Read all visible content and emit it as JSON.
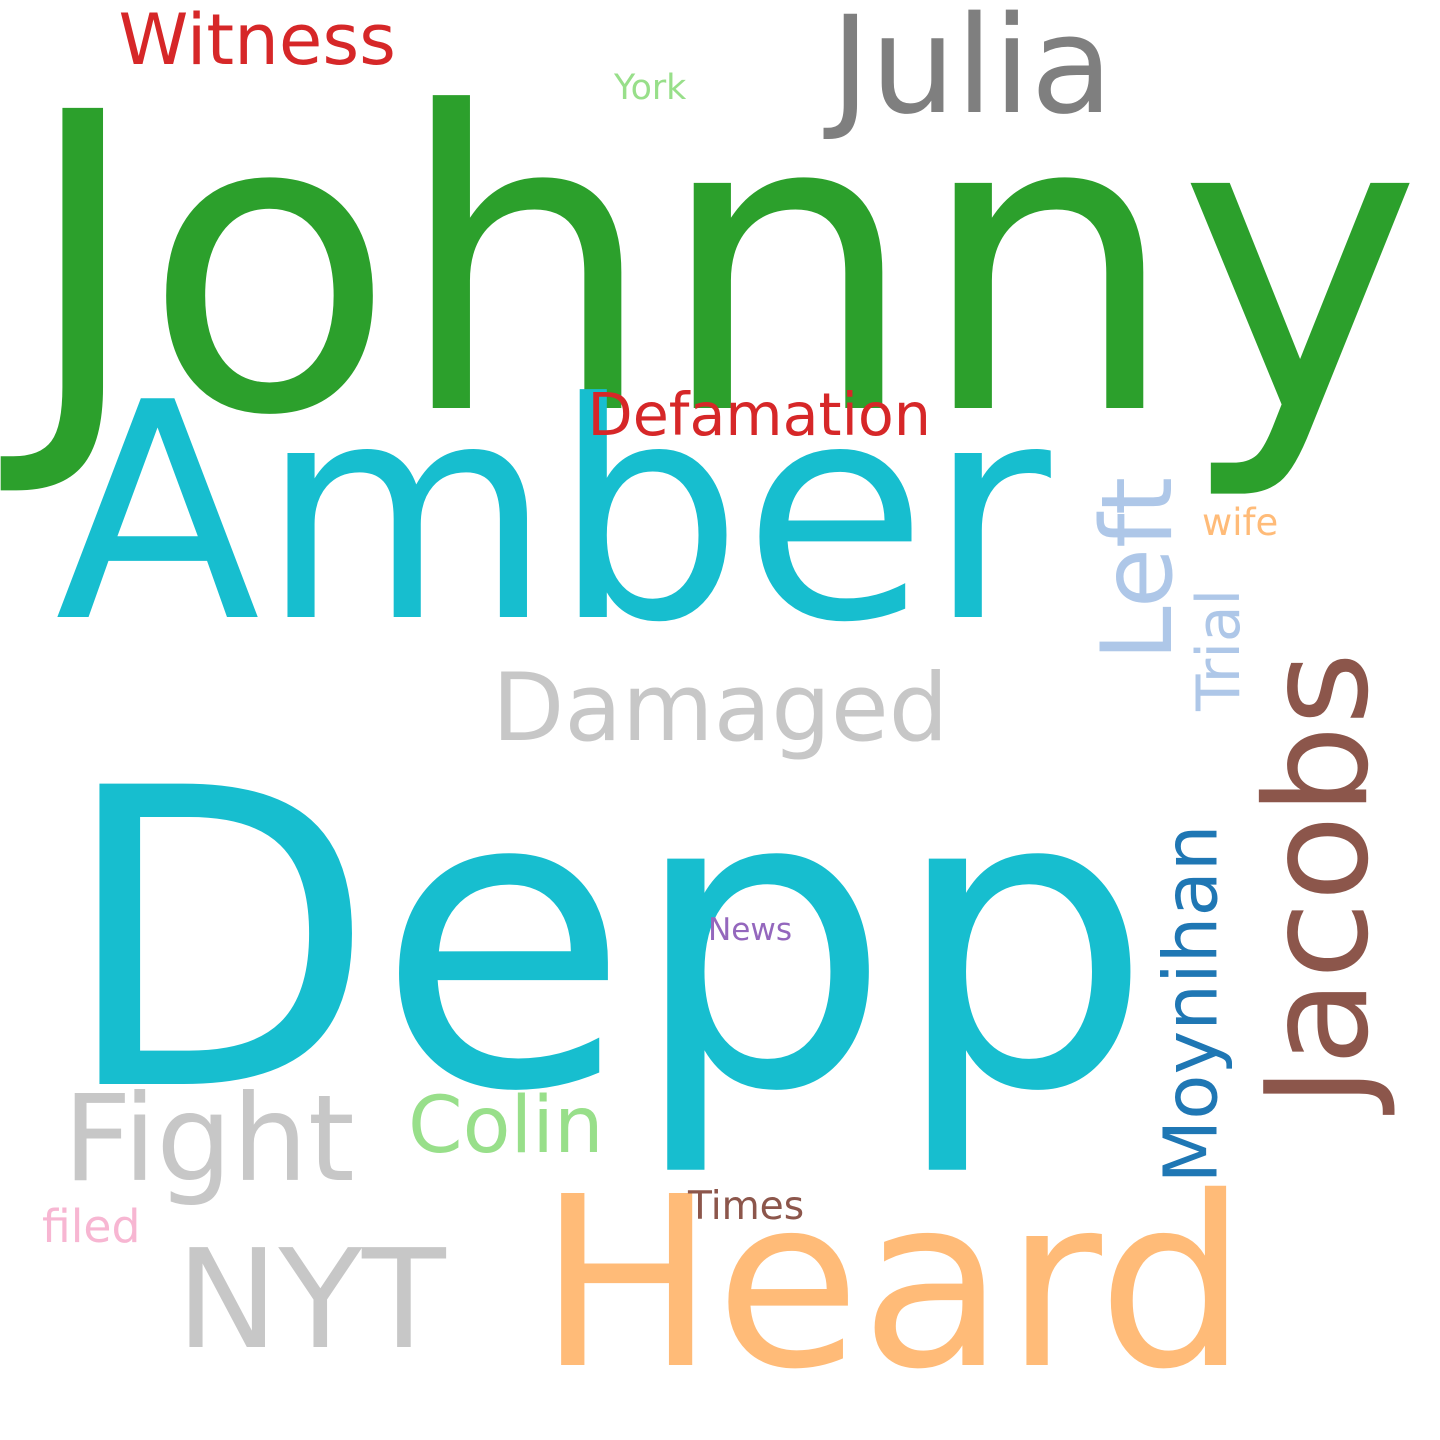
{
  "words": [
    {
      "key": "johnny",
      "text": "Johnny",
      "color": "#2ca02c"
    },
    {
      "key": "amber",
      "text": "Amber",
      "color": "#17becf"
    },
    {
      "key": "depp",
      "text": "Depp",
      "color": "#17becf"
    },
    {
      "key": "heard",
      "text": "Heard",
      "color": "#ffbb78"
    },
    {
      "key": "julia",
      "text": "Julia",
      "color": "#7f7f7f"
    },
    {
      "key": "witness",
      "text": "Witness",
      "color": "#d62728"
    },
    {
      "key": "defamation",
      "text": "Defamation",
      "color": "#d62728"
    },
    {
      "key": "york",
      "text": "York",
      "color": "#98df8a"
    },
    {
      "key": "damaged",
      "text": "Damaged",
      "color": "#c7c7c7"
    },
    {
      "key": "left",
      "text": "Left",
      "color": "#aec7e8"
    },
    {
      "key": "trial",
      "text": "Trial",
      "color": "#aec7e8"
    },
    {
      "key": "wife",
      "text": "wife",
      "color": "#ffbb78"
    },
    {
      "key": "jacobs",
      "text": "Jacobs",
      "color": "#8c564b"
    },
    {
      "key": "moynihan",
      "text": "Moynihan",
      "color": "#1f77b4"
    },
    {
      "key": "news",
      "text": "News",
      "color": "#9467bd"
    },
    {
      "key": "fight",
      "text": "Fight",
      "color": "#c7c7c7"
    },
    {
      "key": "colin",
      "text": "Colin",
      "color": "#98df8a"
    },
    {
      "key": "times",
      "text": "Times",
      "color": "#8c564b"
    },
    {
      "key": "filed",
      "text": "filed",
      "color": "#f7b6d2"
    },
    {
      "key": "nyt",
      "text": "NYT",
      "color": "#c7c7c7"
    }
  ]
}
